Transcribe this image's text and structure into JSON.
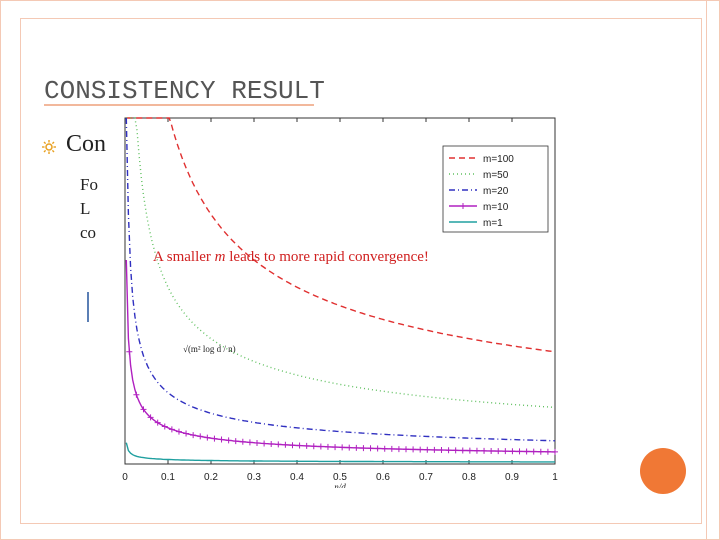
{
  "slide": {
    "title": "CONSISTENCY RESULT",
    "bullet_text": "Con",
    "body_lines": [
      "Fo",
      "L",
      "co"
    ]
  },
  "annotation": {
    "before": "A smaller ",
    "italic": "m",
    "after": " leads to more rapid convergence!"
  },
  "colors": {
    "accent": "#f07835",
    "frame": "#f4c9b5",
    "annotation": "#d02020"
  },
  "chart_data": {
    "type": "line",
    "xlabel": "n/d",
    "curve_label": "√(m² log d / n)",
    "xlim": [
      0,
      1
    ],
    "x_ticks": [
      "0",
      "0.1",
      "0.2",
      "0.3",
      "0.4",
      "0.5",
      "0.6",
      "0.7",
      "0.8",
      "0.9",
      "1"
    ],
    "legend_position": "top-right",
    "series": [
      {
        "name": "m=100",
        "coef": 1.0,
        "color": "#e03030",
        "style": "dashed",
        "marker": ""
      },
      {
        "name": "m=50",
        "coef": 0.5,
        "color": "#60c060",
        "style": "dotted",
        "marker": ""
      },
      {
        "name": "m=20",
        "coef": 0.2,
        "color": "#3030c0",
        "style": "dashdot",
        "marker": ""
      },
      {
        "name": "m=10",
        "coef": 0.1,
        "color": "#b020c0",
        "style": "solid",
        "marker": "+"
      },
      {
        "name": "m=1",
        "coef": 0.01,
        "color": "#20a0a0",
        "style": "solid",
        "marker": ""
      }
    ]
  }
}
